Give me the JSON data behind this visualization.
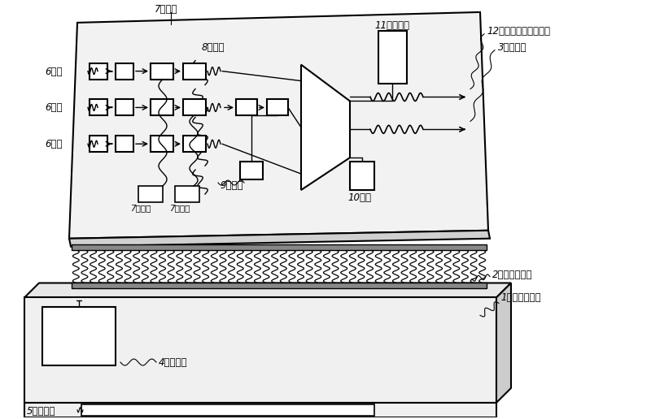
{
  "bg_color": "#ffffff",
  "labels": {
    "label_7_top": "7滤波器",
    "label_8": "8变压器",
    "label_6_1": "6晶振",
    "label_6_2": "6晶振",
    "label_6_3": "6晶振",
    "label_9": "9继电器",
    "label_7_bl": "7滤波器",
    "label_7_br": "7滤波器",
    "label_10": "10晶振",
    "label_11": "11滤波电路",
    "label_12": "12被测模数转换器芯片",
    "label_3": "3测试载板",
    "label_2": "2金属弹簧针组",
    "label_1": "1自动测试设备",
    "label_4": "4直流电源",
    "label_5": "5检测模块"
  },
  "font_size": 9,
  "small_font": 8.5
}
